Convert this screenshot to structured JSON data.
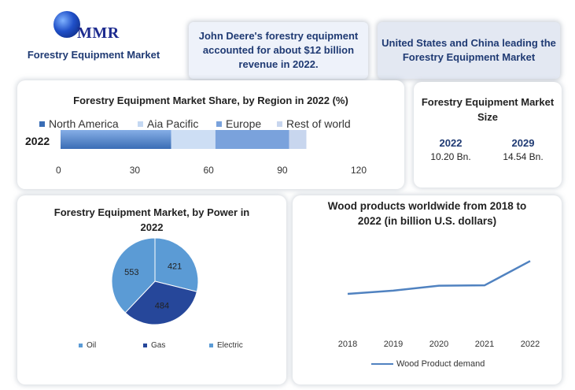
{
  "logo": {
    "text": "MMR",
    "subtitle": "Forestry Equipment Market"
  },
  "facts": [
    "John Deere's forestry equipment accounted for about $12 billion revenue in 2022.",
    "United States and China leading the Forestry Equipment Market"
  ],
  "market_size": {
    "title": "Forestry Equipment Market Size",
    "items": [
      {
        "year": "2022",
        "value": "10.20 Bn."
      },
      {
        "year": "2029",
        "value": "14.54 Bn."
      }
    ]
  },
  "colors": {
    "north_america": "#3a6db5",
    "asia_pacific": "#c4d8f2",
    "europe": "#7aa2dc",
    "rest_of_world": "#c8d6ee",
    "oil": "#5b9bd5",
    "gas": "#26479a",
    "electric": "#5b9bd5",
    "line": "#5082c0"
  },
  "chart_data": [
    {
      "type": "bar",
      "orientation": "horizontal-stacked",
      "title": "Forestry Equipment Market Share, by Region in 2022 (%)",
      "categories": [
        "2022"
      ],
      "series": [
        {
          "name": "North America",
          "values": [
            45
          ]
        },
        {
          "name": "Aia Pacific",
          "values": [
            18
          ]
        },
        {
          "name": "Europe",
          "values": [
            30
          ]
        },
        {
          "name": "Rest of world",
          "values": [
            7
          ]
        }
      ],
      "xticks": [
        "0",
        "30",
        "60",
        "90",
        "120"
      ],
      "xlim": [
        0,
        120
      ],
      "legend": "top"
    },
    {
      "type": "pie",
      "title": "Forestry Equipment Market, by Power in 2022",
      "labels": [
        "Oil",
        "Gas",
        "Electric"
      ],
      "values": [
        553,
        484,
        421
      ],
      "legend": "bottom"
    },
    {
      "type": "line",
      "title": "Wood products worldwide from 2018 to 2022 (in billion U.S. dollars)",
      "categories": [
        "2018",
        "2019",
        "2020",
        "2021",
        "2022"
      ],
      "series": [
        {
          "name": "Wood Product demand",
          "values": [
            12,
            13,
            14.5,
            14.6,
            22
          ]
        }
      ],
      "ylim": [
        0,
        30
      ],
      "legend": "bottom"
    }
  ]
}
